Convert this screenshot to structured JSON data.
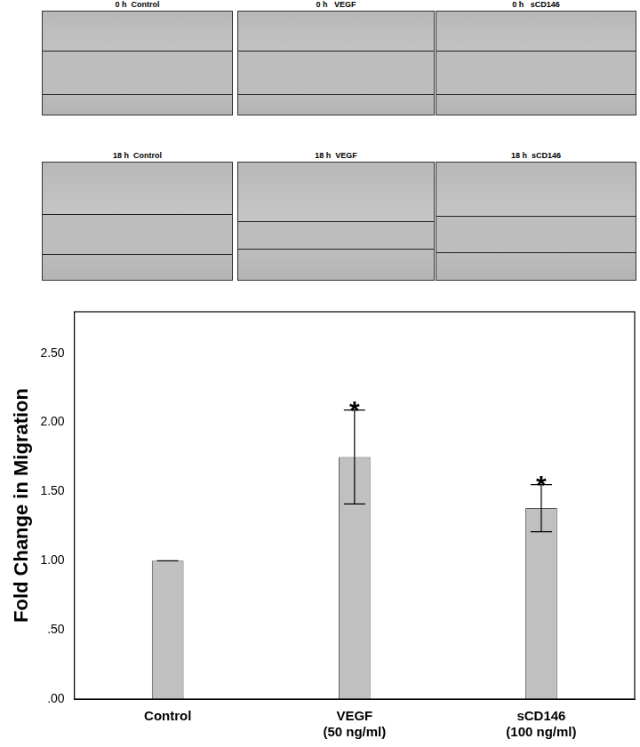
{
  "panels": [
    {
      "label": "0 h  Control"
    },
    {
      "label": "0 h   VEGF"
    },
    {
      "label": "0 h   sCD146"
    },
    {
      "label": "18 h  Control"
    },
    {
      "label": "18 h  VEGF"
    },
    {
      "label": "18 h  sCD146"
    }
  ],
  "chart_data": {
    "type": "bar",
    "y_label": "Fold Change in Migration",
    "categories": [
      [
        "Control"
      ],
      [
        "VEGF",
        "(50 ng/ml)"
      ],
      [
        "sCD146",
        "(100 ng/ml)"
      ]
    ],
    "values": [
      1.0,
      1.75,
      1.38
    ],
    "errors": [
      0.0,
      0.34,
      0.17
    ],
    "significance": [
      null,
      "*",
      "*"
    ],
    "color": "#c0c0c0",
    "ylim": [
      0,
      2.8
    ],
    "yticks": [
      {
        "value": 0,
        "label": ".00"
      },
      {
        "value": 0.5,
        "label": ".50"
      },
      {
        "value": 1,
        "label": "1.00"
      },
      {
        "value": 1.5,
        "label": "1.50"
      },
      {
        "value": 2,
        "label": "2.00"
      },
      {
        "value": 2.5,
        "label": "2.50"
      }
    ],
    "grid": false
  }
}
